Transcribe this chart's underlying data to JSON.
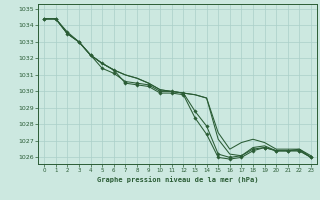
{
  "title": "Graphe pression niveau de la mer (hPa)",
  "background_color": "#cce8e0",
  "grid_color": "#aacfc8",
  "line_color": "#2a5c35",
  "x_values": [
    0,
    1,
    2,
    3,
    4,
    5,
    6,
    7,
    8,
    9,
    10,
    11,
    12,
    13,
    14,
    15,
    16,
    17,
    18,
    19,
    20,
    21,
    22,
    23
  ],
  "series1": [
    1034.4,
    1034.4,
    1033.5,
    1033.0,
    1032.2,
    1031.7,
    1031.3,
    1031.0,
    1030.8,
    1030.5,
    1030.1,
    1030.0,
    1029.9,
    1029.8,
    1029.6,
    1027.5,
    1026.5,
    1026.9,
    1027.1,
    1026.9,
    1026.5,
    1026.5,
    1026.5,
    1026.1
  ],
  "series2": [
    1034.4,
    1034.4,
    1033.5,
    1033.0,
    1032.2,
    1031.7,
    1031.3,
    1031.0,
    1030.8,
    1030.5,
    1030.1,
    1030.0,
    1029.9,
    1029.8,
    1029.6,
    1027.1,
    1026.2,
    1026.1,
    1026.6,
    1026.7,
    1026.4,
    1026.4,
    1026.5,
    1026.0
  ],
  "series3": [
    1034.4,
    1034.4,
    1033.5,
    1033.0,
    1032.2,
    1031.4,
    1031.1,
    1030.6,
    1030.5,
    1030.4,
    1030.0,
    1030.0,
    1029.9,
    1028.8,
    1027.9,
    1026.2,
    1026.0,
    1026.1,
    1026.5,
    1026.6,
    1026.4,
    1026.4,
    1026.4,
    1026.0
  ],
  "series4": [
    1034.4,
    1034.4,
    1033.6,
    1033.0,
    1032.2,
    1031.7,
    1031.3,
    1030.5,
    1030.4,
    1030.3,
    1029.9,
    1029.9,
    1029.8,
    1028.4,
    1027.4,
    1026.0,
    1025.9,
    1026.0,
    1026.4,
    1026.6,
    1026.4,
    1026.4,
    1026.4,
    1026.0
  ],
  "ylim": [
    1025.6,
    1035.3
  ],
  "yticks": [
    1026,
    1027,
    1028,
    1029,
    1030,
    1031,
    1032,
    1033,
    1034,
    1035
  ],
  "xticks": [
    0,
    1,
    2,
    3,
    4,
    5,
    6,
    7,
    8,
    9,
    10,
    11,
    12,
    13,
    14,
    15,
    16,
    17,
    18,
    19,
    20,
    21,
    22,
    23
  ]
}
